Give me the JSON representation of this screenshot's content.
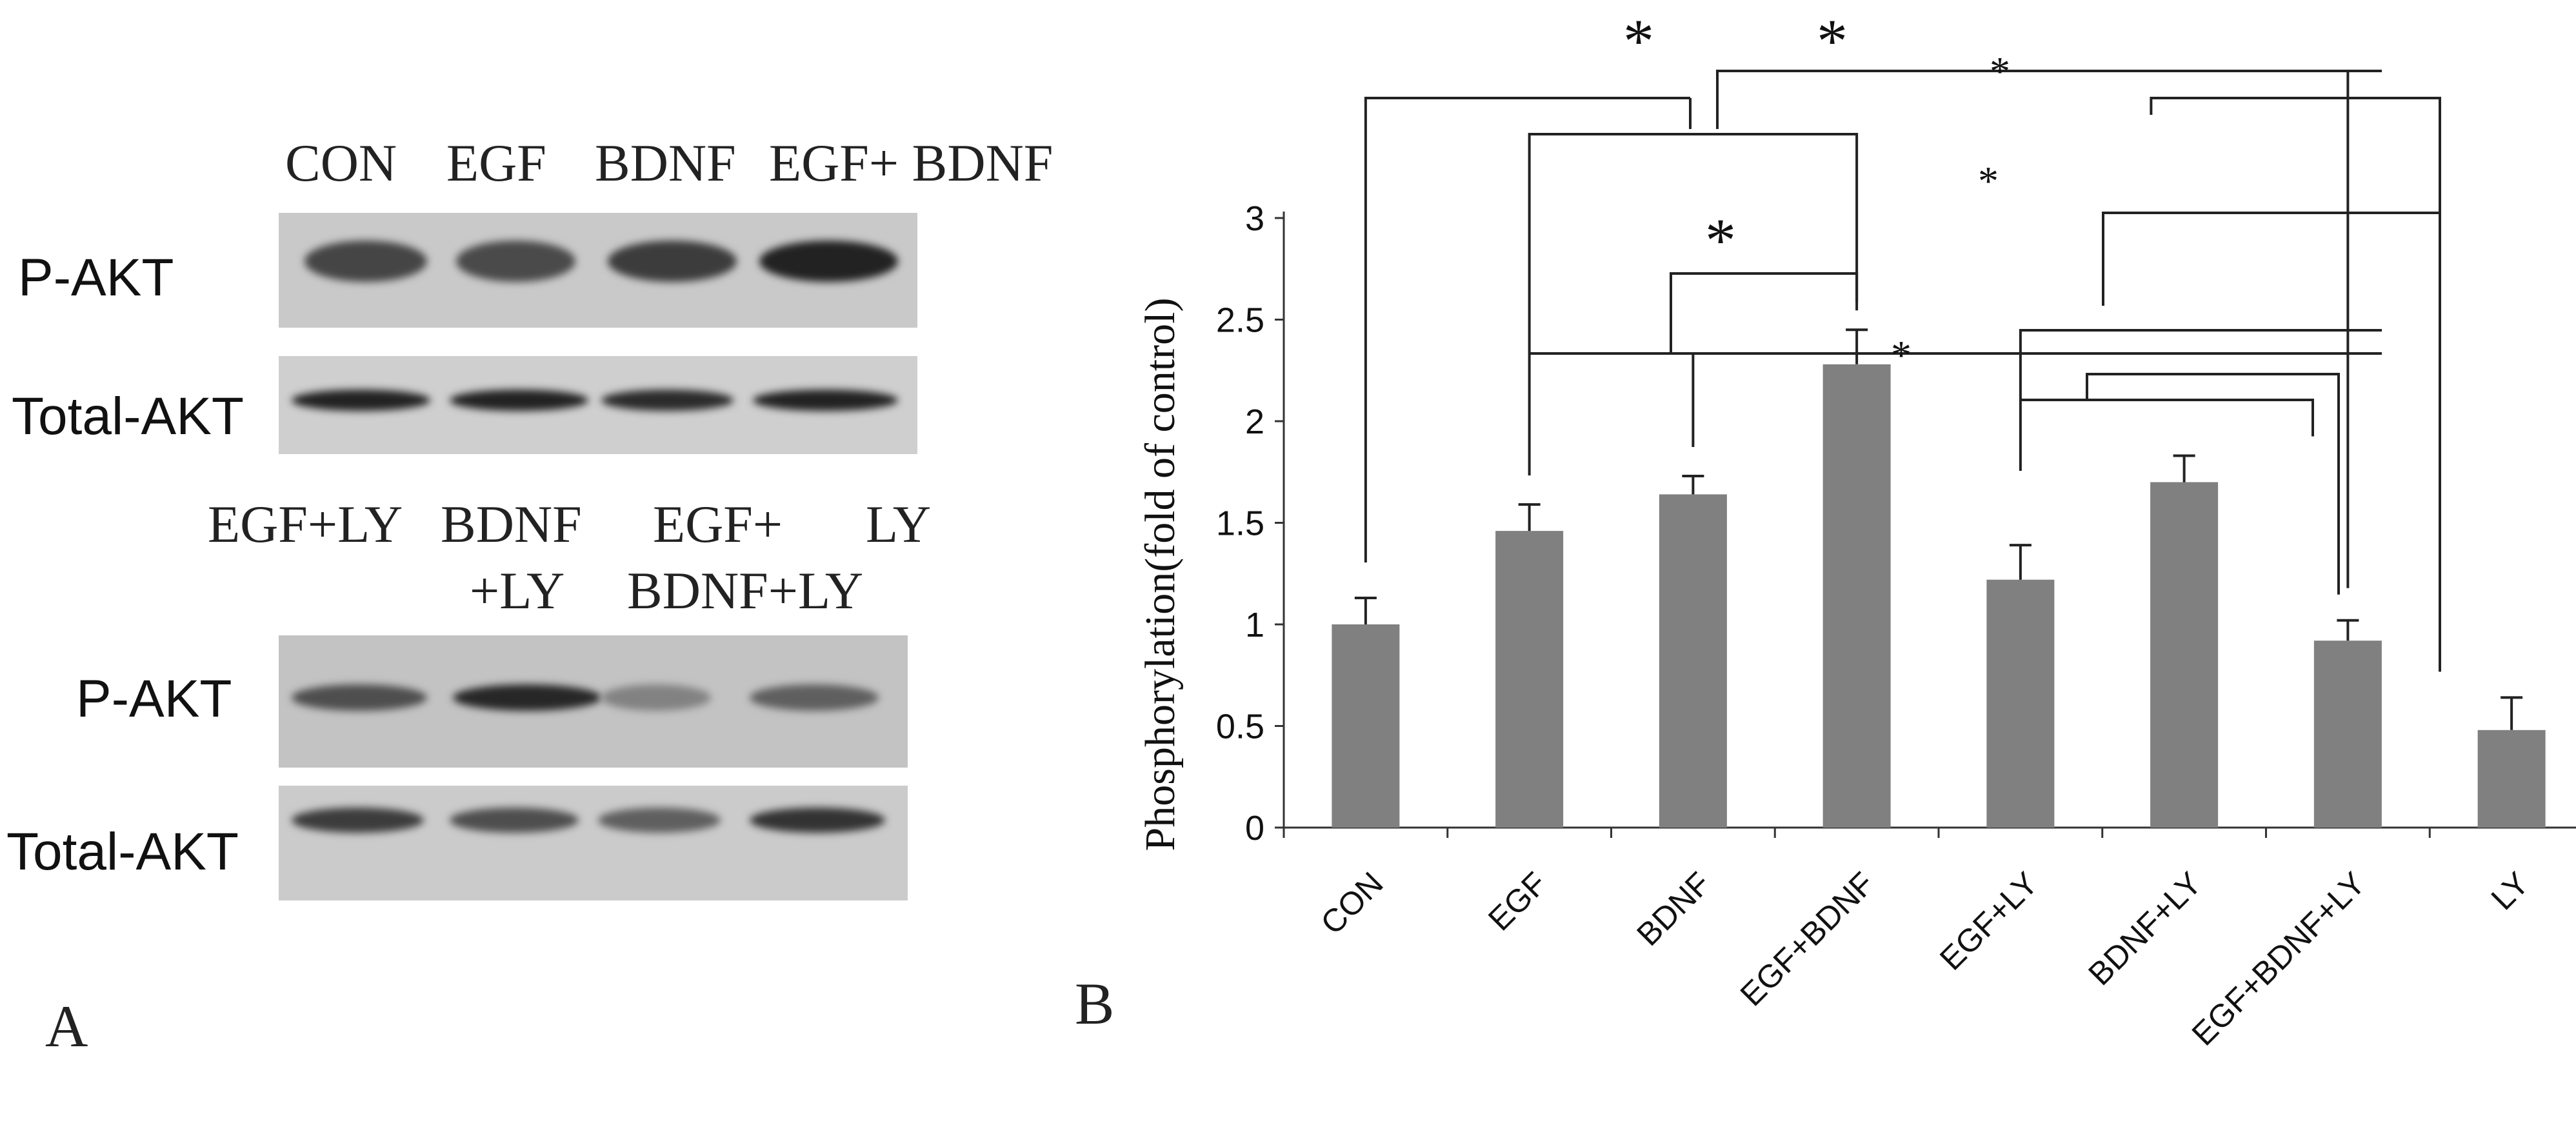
{
  "panel_a": {
    "label": "A",
    "top_lane_labels": [
      "CON",
      "EGF",
      "BDNF",
      "EGF+ BDNF"
    ],
    "bottom_lane_labels": [
      {
        "line1": "EGF+LY",
        "line2": ""
      },
      {
        "line1": "BDNF",
        "line2": "+LY"
      },
      {
        "line1": "EGF+",
        "line2": "BDNF+LY"
      },
      {
        "line1": "LY",
        "line2": ""
      }
    ],
    "row_labels": {
      "top_p": "P-AKT",
      "top_total": "Total-AKT",
      "bottom_p": "P-AKT",
      "bottom_total": "Total-AKT"
    },
    "band_intensity": {
      "top_p": [
        0.75,
        0.72,
        0.8,
        0.95
      ],
      "top_total": [
        0.95,
        0.95,
        0.9,
        0.95
      ],
      "bottom_p": [
        0.7,
        0.92,
        0.4,
        0.6
      ],
      "bottom_total": [
        0.8,
        0.7,
        0.6,
        0.85
      ]
    }
  },
  "panel_b": {
    "label": "B"
  },
  "chart_data": {
    "type": "bar",
    "categories": [
      "CON",
      "EGF",
      "BDNF",
      "EGF+BDNF",
      "EGF+LY",
      "BDNF+LY",
      "EGF+BDNF+LY",
      "LY"
    ],
    "values": [
      1.0,
      1.46,
      1.64,
      2.28,
      1.22,
      1.7,
      0.92,
      0.48
    ],
    "error": [
      0.13,
      0.13,
      0.09,
      0.17,
      0.17,
      0.13,
      0.1,
      0.16
    ],
    "ylabel": "Phosphorylation(fold of control)",
    "xlabel": "",
    "ylim": [
      0,
      3
    ],
    "yticks": [
      "0",
      "0.5",
      "1",
      "1.5",
      "2",
      "2.5",
      "3"
    ],
    "bar_color": "#808080",
    "grid": false,
    "significance": [
      {
        "groups": [
          "CON",
          "EGF+BDNF"
        ],
        "label": "*"
      },
      {
        "groups": [
          "EGF+BDNF",
          "EGF+BDNF+LY"
        ],
        "label": "*"
      },
      {
        "groups": [
          "EGF+BDNF",
          "LY"
        ],
        "label": "*"
      },
      {
        "groups": [
          "BDNF+LY",
          "LY"
        ],
        "label": "*"
      },
      {
        "groups": [
          "EGF",
          "BDNF"
        ],
        "label": "*"
      },
      {
        "groups": [
          "EGF+LY",
          "EGF+BDNF+LY"
        ],
        "label": "*"
      },
      {
        "groups": [
          "BDNF+LY",
          "EGF+BDNF+LY"
        ],
        "label": "*"
      }
    ]
  }
}
